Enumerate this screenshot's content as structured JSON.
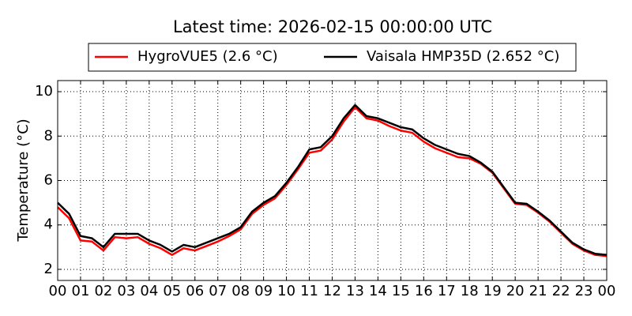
{
  "chart_data": {
    "type": "line",
    "title": "Latest time: 2026-02-15 00:00:00 UTC",
    "y_label": "Temperature (°C)",
    "x": [
      0,
      0.5,
      1,
      1.5,
      2,
      2.5,
      3,
      3.5,
      4,
      4.5,
      5,
      5.5,
      6,
      6.5,
      7,
      7.5,
      8,
      8.5,
      9,
      9.5,
      10,
      10.5,
      11,
      11.5,
      12,
      12.5,
      13,
      13.5,
      14,
      14.5,
      15,
      15.5,
      16,
      16.5,
      17,
      17.5,
      18,
      18.5,
      19,
      19.5,
      20,
      20.5,
      21,
      21.5,
      22,
      22.5,
      23,
      23.5,
      24
    ],
    "series": [
      {
        "name": "HygroVUE5 (2.6 °C)",
        "color": "#ff0000",
        "values": [
          4.8,
          4.3,
          3.3,
          3.25,
          2.85,
          3.45,
          3.4,
          3.45,
          3.15,
          2.95,
          2.65,
          2.95,
          2.85,
          3.05,
          3.25,
          3.5,
          3.8,
          4.5,
          4.9,
          5.2,
          5.8,
          6.5,
          7.25,
          7.35,
          7.85,
          8.65,
          9.3,
          8.8,
          8.7,
          8.45,
          8.25,
          8.15,
          7.75,
          7.45,
          7.25,
          7.05,
          7.0,
          6.75,
          6.35,
          5.65,
          4.95,
          4.9,
          4.55,
          4.15,
          3.65,
          3.15,
          2.85,
          2.65,
          2.6
        ]
      },
      {
        "name": "Vaisala HMP35D (2.652 °C)",
        "color": "#000000",
        "values": [
          5.0,
          4.5,
          3.5,
          3.4,
          3.0,
          3.6,
          3.6,
          3.6,
          3.3,
          3.1,
          2.8,
          3.1,
          3.0,
          3.2,
          3.4,
          3.6,
          3.9,
          4.6,
          5.0,
          5.3,
          5.9,
          6.6,
          7.4,
          7.5,
          8.0,
          8.8,
          9.4,
          8.9,
          8.8,
          8.6,
          8.4,
          8.3,
          7.9,
          7.6,
          7.4,
          7.2,
          7.1,
          6.8,
          6.4,
          5.7,
          5.0,
          4.95,
          4.6,
          4.2,
          3.7,
          3.2,
          2.9,
          2.7,
          2.65
        ]
      }
    ],
    "xlim": [
      0,
      24
    ],
    "xticks": [
      {
        "value": 0,
        "label": "00"
      },
      {
        "value": 1,
        "label": "01"
      },
      {
        "value": 2,
        "label": "02"
      },
      {
        "value": 3,
        "label": "03"
      },
      {
        "value": 4,
        "label": "04"
      },
      {
        "value": 5,
        "label": "05"
      },
      {
        "value": 6,
        "label": "06"
      },
      {
        "value": 7,
        "label": "07"
      },
      {
        "value": 8,
        "label": "08"
      },
      {
        "value": 9,
        "label": "09"
      },
      {
        "value": 10,
        "label": "10"
      },
      {
        "value": 11,
        "label": "11"
      },
      {
        "value": 12,
        "label": "12"
      },
      {
        "value": 13,
        "label": "13"
      },
      {
        "value": 14,
        "label": "14"
      },
      {
        "value": 15,
        "label": "15"
      },
      {
        "value": 16,
        "label": "16"
      },
      {
        "value": 17,
        "label": "17"
      },
      {
        "value": 18,
        "label": "18"
      },
      {
        "value": 19,
        "label": "19"
      },
      {
        "value": 20,
        "label": "20"
      },
      {
        "value": 21,
        "label": "21"
      },
      {
        "value": 22,
        "label": "22"
      },
      {
        "value": 23,
        "label": "23"
      },
      {
        "value": 24,
        "label": "00"
      }
    ],
    "ylim": [
      1.5,
      10.5
    ],
    "yticks": [
      2,
      4,
      6,
      8,
      10
    ],
    "grid": true,
    "legend": "top"
  }
}
